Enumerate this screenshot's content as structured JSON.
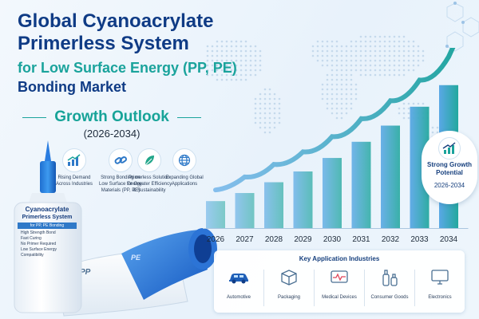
{
  "title": {
    "line1": "Global Cyanoacrylate",
    "line2": "Primerless System",
    "line3": "for Low Surface Energy (PP, PE)",
    "line4": "Bonding Market"
  },
  "outlook": {
    "heading": "Growth Outlook",
    "range": "(2026-2034)"
  },
  "features": [
    {
      "icon": "bar-growth-icon",
      "text": "Rising Demand Across Industries"
    },
    {
      "icon": "link-chain-icon",
      "text": "Strong Bonding on Low Surface Energy Materials (PP, PE)"
    },
    {
      "icon": "leaf-icon",
      "text": "Primerless Solution for Greater Efficiency & Sustainability"
    },
    {
      "icon": "globe-icon",
      "text": "Expanding Global Applications"
    }
  ],
  "product": {
    "name1": "Cyanoacrylate",
    "name2": "Primerless System",
    "tag": "for PP, PE Bonding",
    "bullets": [
      "High Strength Bond",
      "Fast Curing",
      "No Primer Required",
      "Low Surface Energy Compatibility"
    ],
    "material_pp": "PP",
    "material_pe": "PE"
  },
  "badge": {
    "title": "Strong Growth Potential",
    "range": "2026-2034"
  },
  "industries": {
    "title": "Key Application Industries",
    "items": [
      {
        "icon": "car-icon",
        "label": "Automotive"
      },
      {
        "icon": "box-icon",
        "label": "Packaging"
      },
      {
        "icon": "medical-monitor-icon",
        "label": "Medical Devices"
      },
      {
        "icon": "bottles-icon",
        "label": "Consumer Goods"
      },
      {
        "icon": "computer-icon",
        "label": "Electronics"
      }
    ]
  },
  "colors": {
    "navy": "#0f3b85",
    "teal": "#1aa39c",
    "bar_start": "#5aa8e6",
    "bar_end": "#23a89e",
    "arrow": "#22a6a0"
  },
  "chart_data": {
    "type": "bar",
    "categories": [
      "2026",
      "2027",
      "2028",
      "2029",
      "2030",
      "2031",
      "2032",
      "2033",
      "2034"
    ],
    "values": [
      1.0,
      1.3,
      1.7,
      2.1,
      2.6,
      3.2,
      3.8,
      4.5,
      5.3
    ],
    "title": "",
    "xlabel": "",
    "ylabel": "",
    "ylim": [
      0,
      5.5
    ],
    "grid": false,
    "trend_arrow": true
  }
}
